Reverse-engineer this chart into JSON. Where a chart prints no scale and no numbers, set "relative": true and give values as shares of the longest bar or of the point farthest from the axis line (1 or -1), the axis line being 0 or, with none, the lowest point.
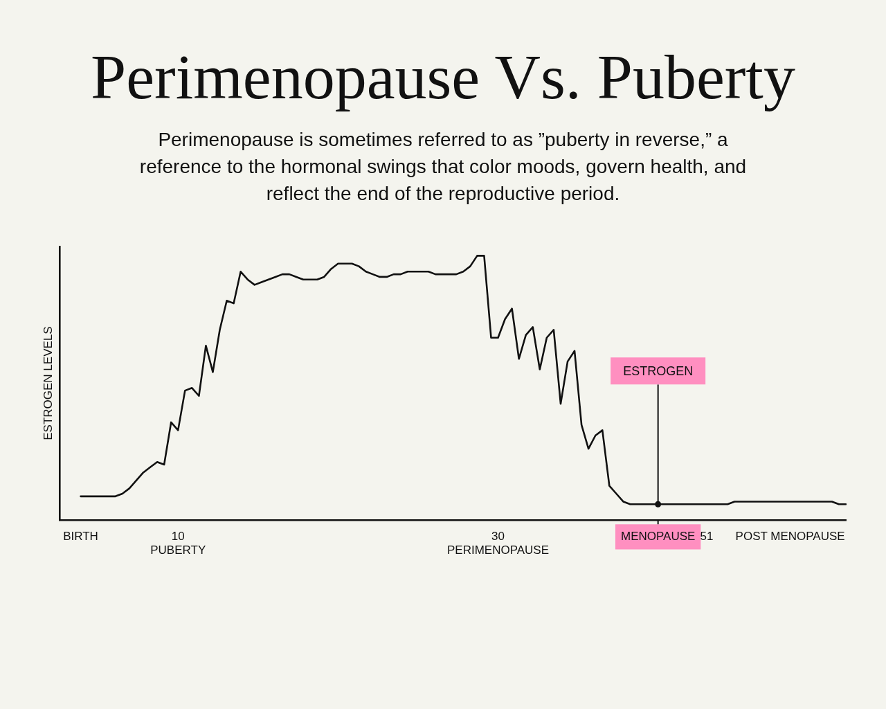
{
  "chart_data": {
    "type": "line",
    "title": "Perimenopause Vs. Puberty",
    "subtitle": "Perimenopause is sometimes referred to as ”puberty in reverse,” a reference to the hormonal swings that color moods, govern health, and reflect the end of the reproductive period.",
    "ylabel": "ESTROGEN LEVELS",
    "relative": true,
    "categories": [
      null,
      null,
      null,
      "BIRTH",
      null,
      null,
      null,
      null,
      null,
      null,
      null,
      null,
      null,
      null,
      null,
      null,
      null,
      "10\nPUBERTY",
      null,
      null,
      null,
      null,
      null,
      null,
      null,
      null,
      null,
      null,
      null,
      null,
      null,
      null,
      null,
      null,
      null,
      null,
      null,
      null,
      null,
      null,
      null,
      null,
      null,
      null,
      null,
      null,
      null,
      null,
      null,
      null,
      null,
      null,
      null,
      null,
      null,
      null,
      null,
      null,
      null,
      null,
      null,
      null,
      null,
      "30\nPERIMENOPAUSE",
      null,
      null,
      null,
      null,
      null,
      null,
      null,
      null,
      null,
      null,
      null,
      null,
      null,
      null,
      null,
      null,
      null,
      null,
      null,
      null,
      null,
      null,
      "MENOPAUSE",
      null,
      null,
      null,
      null,
      null,
      null,
      "51",
      null,
      null,
      null,
      null,
      null,
      null,
      null,
      null,
      null,
      null,
      null,
      "POST MENOPAUSE",
      null,
      null,
      null,
      null,
      null,
      null,
      null,
      null
    ],
    "series": [
      {
        "color": "#111111",
        "values": [
          null,
          null,
          null,
          0.09,
          0.09,
          0.09,
          0.09,
          0.09,
          0.09,
          0.1,
          0.12,
          0.15,
          0.18,
          0.2,
          0.22,
          0.21,
          0.37,
          0.34,
          0.49,
          0.5,
          0.47,
          0.66,
          0.56,
          0.72,
          0.83,
          0.82,
          0.94,
          0.91,
          0.89,
          0.9,
          0.91,
          0.92,
          0.93,
          0.93,
          0.92,
          0.91,
          0.91,
          0.91,
          0.92,
          0.95,
          0.97,
          0.97,
          0.97,
          0.96,
          0.94,
          0.93,
          0.92,
          0.92,
          0.93,
          0.93,
          0.94,
          0.94,
          0.94,
          0.94,
          0.93,
          0.93,
          0.93,
          0.93,
          0.94,
          0.96,
          1.0,
          1.0,
          0.69,
          0.69,
          0.76,
          0.8,
          0.61,
          0.7,
          0.73,
          0.57,
          0.69,
          0.72,
          0.44,
          0.6,
          0.64,
          0.36,
          0.27,
          0.32,
          0.34,
          0.13,
          0.1,
          0.07,
          0.06,
          0.06,
          0.06,
          0.06,
          0.06,
          0.06,
          0.06,
          0.06,
          0.06,
          0.06,
          0.06,
          0.06,
          0.06,
          0.06,
          0.06,
          0.07,
          0.07,
          0.07,
          0.07,
          0.07,
          0.07,
          0.07,
          0.07,
          0.07,
          0.07,
          0.07,
          0.07,
          0.07,
          0.07,
          0.07,
          0.06,
          0.06
        ]
      }
    ],
    "annotations": [
      {
        "text": "ESTROGEN",
        "x": "MENOPAUSE",
        "y": 0.06
      }
    ],
    "legend": false,
    "grid": false,
    "marker": "none",
    "line_style": "solid"
  }
}
